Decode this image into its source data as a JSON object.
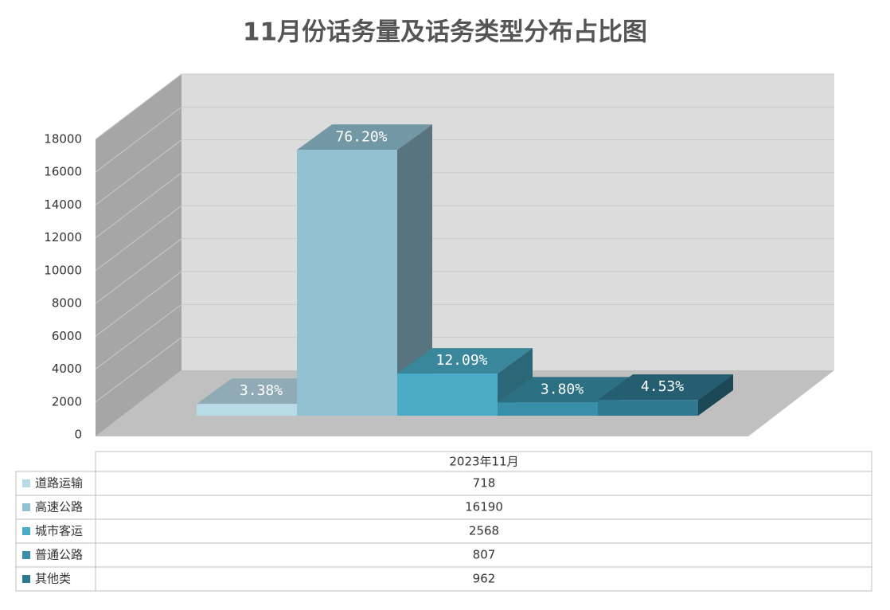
{
  "chart_data": {
    "type": "bar3d",
    "title": "11月份话务量及话务类型分布占比图",
    "categories": [
      "2023年11月"
    ],
    "series": [
      {
        "name": "道路运输",
        "color": "#b8dbe8",
        "values": [
          718
        ],
        "share": {
          "value": 3.38,
          "label": "3.38%"
        }
      },
      {
        "name": "高速公路",
        "color": "#92c1d4",
        "values": [
          16190
        ],
        "share": {
          "value": 76.2,
          "label": "76.20%"
        }
      },
      {
        "name": "城市客运",
        "color": "#4aacc6",
        "values": [
          2568
        ],
        "share": {
          "value": 12.09,
          "label": "12.09%"
        }
      },
      {
        "name": "普通公路",
        "color": "#378fa8",
        "values": [
          807
        ],
        "share": {
          "value": 3.8,
          "label": "3.80%"
        }
      },
      {
        "name": "其他类",
        "color": "#2e7890",
        "values": [
          962
        ],
        "share": {
          "value": 4.53,
          "label": "4.53%"
        }
      }
    ],
    "ylim": [
      0,
      18000
    ],
    "yticks": [
      0,
      2000,
      4000,
      6000,
      8000,
      10000,
      12000,
      14000,
      16000,
      18000
    ],
    "grid": true
  }
}
